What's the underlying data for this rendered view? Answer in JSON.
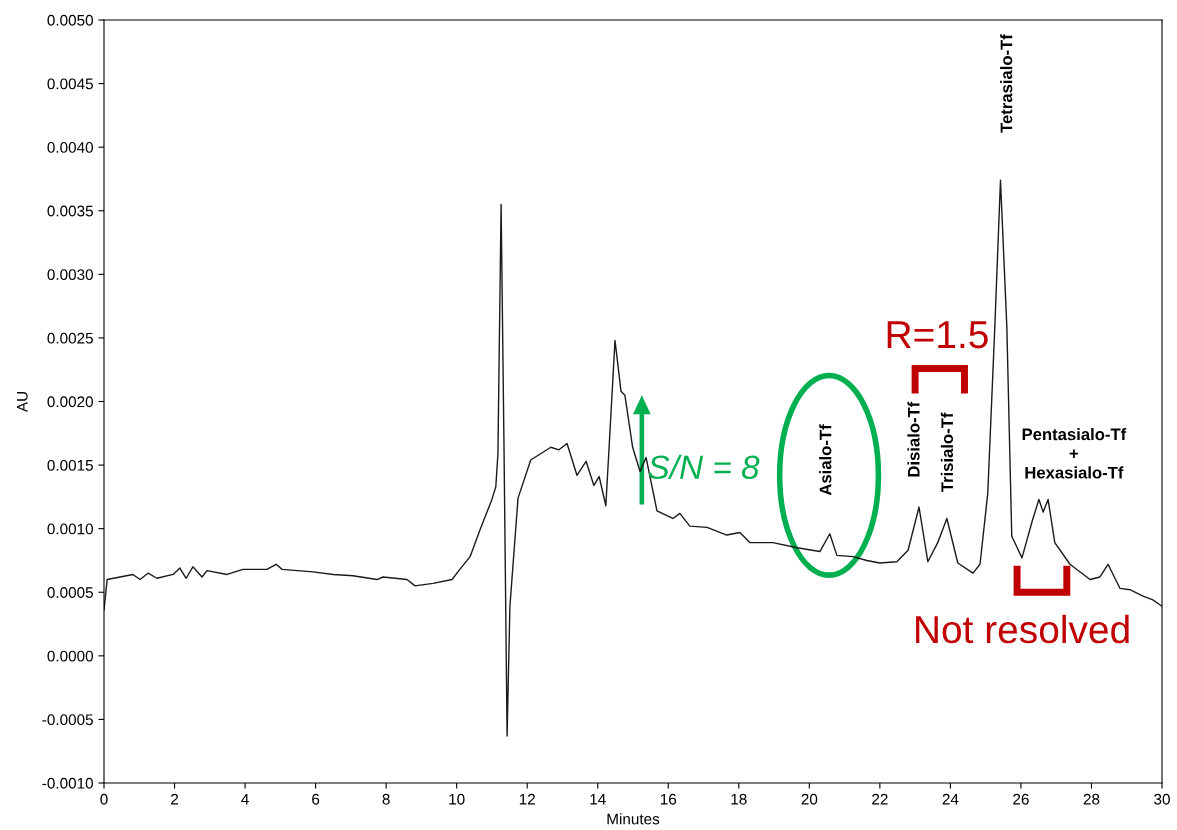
{
  "chart_data": {
    "type": "line",
    "xlabel": "Minutes",
    "ylabel": "AU",
    "x": [
      0,
      0.09,
      0.82,
      1.02,
      1.25,
      1.5,
      1.96,
      2.15,
      2.33,
      2.52,
      2.78,
      2.92,
      3.49,
      3.94,
      4.62,
      4.88,
      5.05,
      5.93,
      6.5,
      7.06,
      7.74,
      7.91,
      8.59,
      8.82,
      9.33,
      9.87,
      10.09,
      10.38,
      10.66,
      11.0,
      11.11,
      11.17,
      11.26,
      11.34,
      11.43,
      11.51,
      11.74,
      12.1,
      12.67,
      12.9,
      13.13,
      13.41,
      13.67,
      13.89,
      14.04,
      14.23,
      14.49,
      14.66,
      14.77,
      14.99,
      15.2,
      15.37,
      15.68,
      16.13,
      16.33,
      16.61,
      17.1,
      17.66,
      18.03,
      18.32,
      18.97,
      19.65,
      20.3,
      20.58,
      20.78,
      21.24,
      21.63,
      22.0,
      22.48,
      22.8,
      23.11,
      23.36,
      23.64,
      23.9,
      24.21,
      24.64,
      24.84,
      25.06,
      25.26,
      25.42,
      25.6,
      25.74,
      26.03,
      26.31,
      26.51,
      26.63,
      26.77,
      26.96,
      27.39,
      27.96,
      28.24,
      28.47,
      28.81,
      29.09,
      29.46,
      29.74,
      30.0
    ],
    "values": [
      0.00036,
      0.0006,
      0.00064,
      0.0006,
      0.00065,
      0.00061,
      0.00064,
      0.00069,
      0.00061,
      0.0007,
      0.00062,
      0.00067,
      0.00064,
      0.00068,
      0.00068,
      0.00072,
      0.00068,
      0.00066,
      0.00064,
      0.00063,
      0.0006,
      0.00062,
      0.0006,
      0.00055,
      0.00057,
      0.0006,
      0.00068,
      0.00078,
      0.00099,
      0.00123,
      0.00133,
      0.00159,
      0.00355,
      0.0017,
      -0.00063,
      0.00039,
      0.00124,
      0.00154,
      0.00164,
      0.00162,
      0.00167,
      0.00142,
      0.00153,
      0.00134,
      0.00141,
      0.00118,
      0.00248,
      0.00208,
      0.00205,
      0.00164,
      0.00145,
      0.00156,
      0.00114,
      0.00108,
      0.00112,
      0.00102,
      0.00101,
      0.00095,
      0.00097,
      0.00089,
      0.00089,
      0.00085,
      0.00082,
      0.00096,
      0.00079,
      0.00078,
      0.00075,
      0.00073,
      0.00074,
      0.00083,
      0.00117,
      0.00074,
      0.00089,
      0.00108,
      0.00073,
      0.00065,
      0.00072,
      0.00128,
      0.00259,
      0.00374,
      0.00259,
      0.00094,
      0.00077,
      0.00105,
      0.00123,
      0.00113,
      0.00123,
      0.00089,
      0.00072,
      0.0006,
      0.00062,
      0.00072,
      0.00053,
      0.00052,
      0.00047,
      0.00044,
      0.00039
    ],
    "color": "#1a1a1a",
    "xlim": [
      0,
      30
    ],
    "xticks": [
      0,
      2,
      4,
      6,
      8,
      10,
      12,
      14,
      16,
      18,
      20,
      22,
      24,
      26,
      28,
      30
    ],
    "ylim": [
      -0.001,
      0.005
    ],
    "yticks": [
      {
        "value": -0.001,
        "label": "-0.0010"
      },
      {
        "value": -0.0005,
        "label": "-0.0005"
      },
      {
        "value": 0,
        "label": "0.0000"
      },
      {
        "value": 0.0005,
        "label": "0.0005"
      },
      {
        "value": 0.001,
        "label": "0.0010"
      },
      {
        "value": 0.0015,
        "label": "0.0015"
      },
      {
        "value": 0.002,
        "label": "0.0020"
      },
      {
        "value": 0.0025,
        "label": "0.0025"
      },
      {
        "value": 0.003,
        "label": "0.0030"
      },
      {
        "value": 0.0035,
        "label": "0.0035"
      },
      {
        "value": 0.004,
        "label": "0.0040"
      },
      {
        "value": 0.0045,
        "label": "0.0045"
      },
      {
        "value": 0.005,
        "label": "0.0050"
      }
    ],
    "grid": false,
    "marker": "none",
    "line_style": "solid",
    "annotations": [
      "Asialo-Tf",
      "Disialo-Tf",
      "Trisialo-Tf",
      "Tetrasialo-Tf",
      "Pentasialo-Tf\n+\nHexasialo-Tf",
      "R=1.5",
      "Not resolved",
      "S/N = 8"
    ]
  }
}
